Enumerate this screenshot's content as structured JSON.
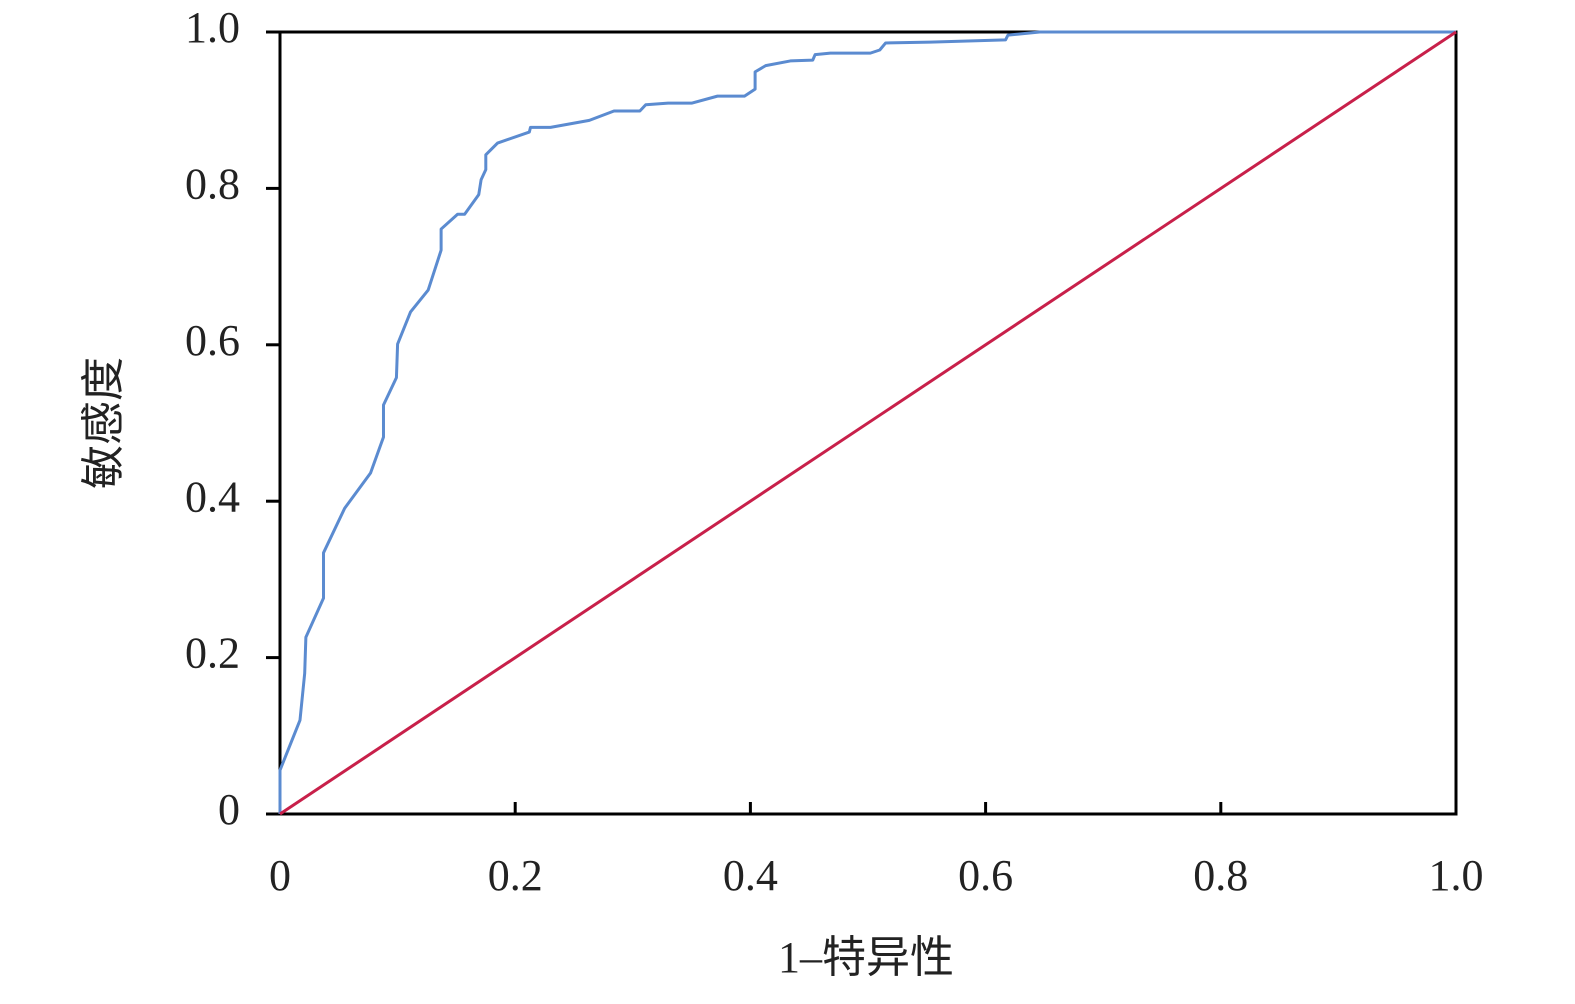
{
  "chart_data": {
    "type": "line",
    "x_label": "1–特异性",
    "y_label": "敏感度",
    "xlim": [
      0,
      1
    ],
    "ylim": [
      0,
      1
    ],
    "xticks": [
      0,
      0.2,
      0.4,
      0.6,
      0.8,
      {
        "value": 1,
        "label": "1.0"
      }
    ],
    "yticks": [
      0,
      0.2,
      0.4,
      0.6,
      0.8,
      {
        "value": 1,
        "label": "1.0"
      }
    ],
    "series": [
      {
        "color": "#5b8bd0",
        "x": [
          0,
          0,
          0.017,
          0.021,
          0.022,
          0.037,
          0.037,
          0.055,
          0.077,
          0.088,
          0.088,
          0.099,
          0.1,
          0.111,
          0.126,
          0.137,
          0.137,
          0.151,
          0.157,
          0.169,
          0.171,
          0.175,
          0.175,
          0.185,
          0.212,
          0.213,
          0.23,
          0.263,
          0.284,
          0.306,
          0.311,
          0.33,
          0.35,
          0.372,
          0.395,
          0.404,
          0.404,
          0.413,
          0.434,
          0.453,
          0.455,
          0.468,
          0.502,
          0.51,
          0.515,
          0.553,
          0.617,
          0.619,
          0.646,
          1
        ],
        "values": [
          0,
          0.056,
          0.12,
          0.18,
          0.226,
          0.276,
          0.334,
          0.391,
          0.436,
          0.482,
          0.523,
          0.558,
          0.601,
          0.642,
          0.67,
          0.721,
          0.748,
          0.767,
          0.767,
          0.792,
          0.811,
          0.824,
          0.843,
          0.858,
          0.872,
          0.878,
          0.878,
          0.887,
          0.899,
          0.899,
          0.907,
          0.909,
          0.909,
          0.918,
          0.918,
          0.927,
          0.949,
          0.957,
          0.963,
          0.964,
          0.971,
          0.973,
          0.973,
          0.977,
          0.986,
          0.987,
          0.99,
          0.996,
          1,
          1
        ]
      },
      {
        "color": "#c8204a",
        "x": [
          0,
          1
        ],
        "values": [
          0,
          1
        ]
      }
    ]
  }
}
